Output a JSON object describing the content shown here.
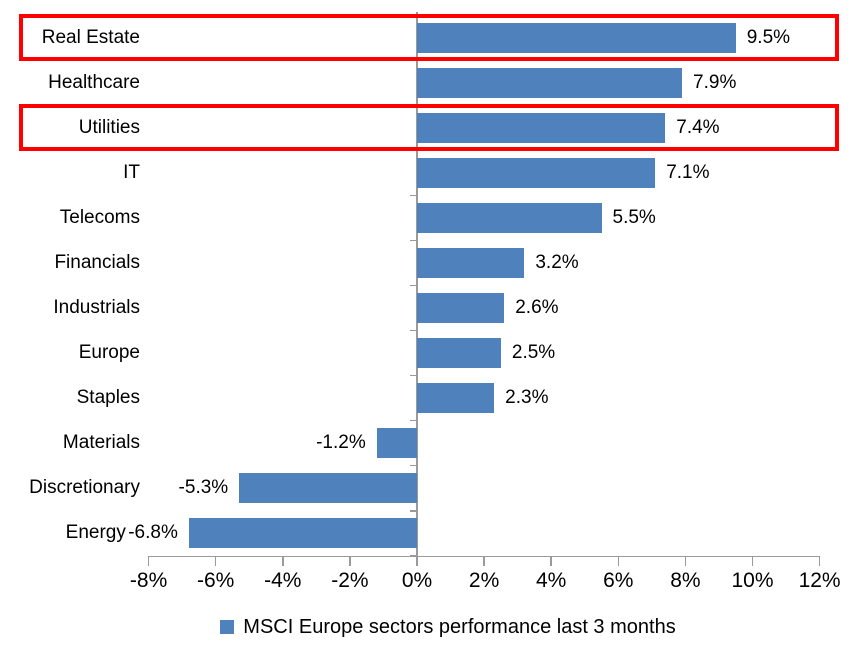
{
  "chart_data": {
    "type": "bar",
    "orientation": "horizontal",
    "title": "",
    "categories": [
      "Real Estate",
      "Healthcare",
      "Utilities",
      "IT",
      "Telecoms",
      "Financials",
      "Industrials",
      "Europe",
      "Staples",
      "Materials",
      "Discretionary",
      "Energy"
    ],
    "values": [
      9.5,
      7.9,
      7.4,
      7.1,
      5.5,
      3.2,
      2.6,
      2.5,
      2.3,
      -1.2,
      -5.3,
      -6.8
    ],
    "value_labels": [
      "9.5%",
      "7.9%",
      "7.4%",
      "7.1%",
      "5.5%",
      "3.2%",
      "2.6%",
      "2.5%",
      "2.3%",
      "-1.2%",
      "-5.3%",
      "-6.8%"
    ],
    "x_ticks": [
      -8,
      -6,
      -4,
      -2,
      0,
      2,
      4,
      6,
      8,
      10,
      12
    ],
    "x_tick_labels": [
      "-8%",
      "-6%",
      "-4%",
      "-2%",
      "0%",
      "2%",
      "4%",
      "6%",
      "8%",
      "10%",
      "12%"
    ],
    "xlim": [
      -8,
      12
    ],
    "grid": false,
    "bar_color": "#4F81BD",
    "axis_color": "#9a9a9a",
    "highlight_color": "#ff0000",
    "highlighted_categories": [
      "Real Estate",
      "Utilities"
    ],
    "legend_position": "bottom"
  },
  "legend": {
    "label": "MSCI Europe sectors performance last 3 months",
    "swatch_color": "#4F81BD"
  }
}
